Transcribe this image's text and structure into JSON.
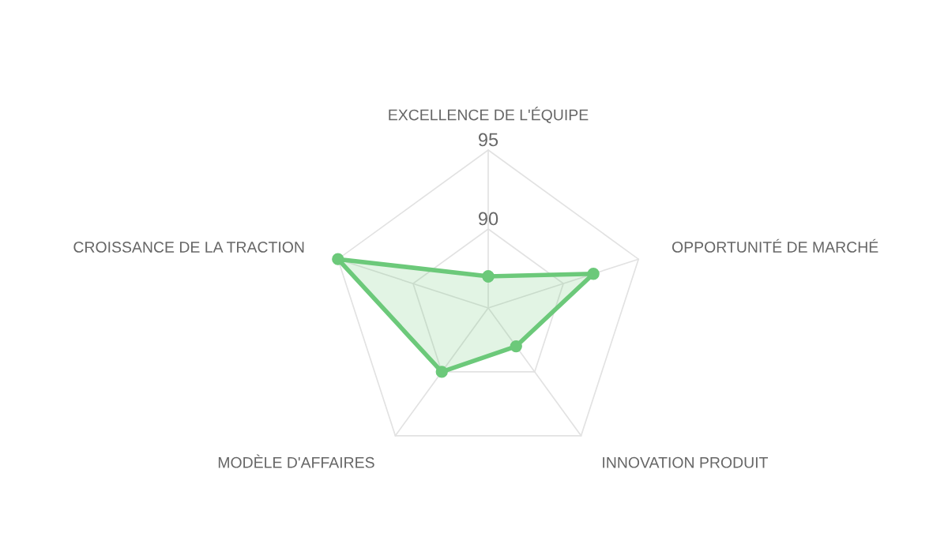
{
  "chart_data": {
    "type": "radar",
    "categories": [
      "EXCELLENCE DE L'ÉQUIPE",
      "OPPORTUNITÉ DE MARCHÉ",
      "INNOVATION PRODUIT",
      "MODÈLE D'AFFAIRES",
      "CROISSANCE DE LA TRACTION"
    ],
    "series": [
      {
        "color": "#6cc97a",
        "values": [
          87,
          92,
          88,
          90,
          95
        ]
      }
    ],
    "ylim": [
      85,
      95
    ],
    "yticks": [
      90,
      95
    ],
    "grid": true,
    "marker": "circle"
  }
}
